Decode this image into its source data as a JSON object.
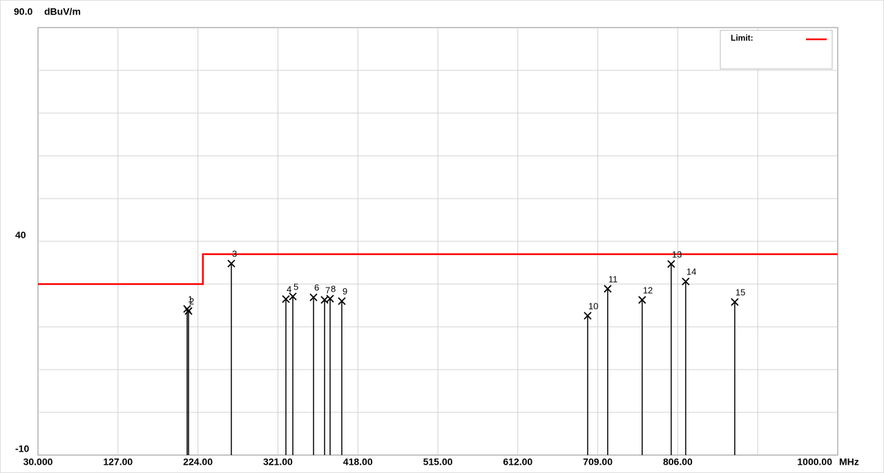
{
  "chart_data": {
    "type": "stem",
    "y_unit": "dBuV/m",
    "x_unit": "MHz",
    "xlim": [
      30,
      1000
    ],
    "ylim": [
      -10,
      90
    ],
    "xticks": [
      {
        "value": 30,
        "label": "30.000"
      },
      {
        "value": 127,
        "label": "127.00"
      },
      {
        "value": 224,
        "label": "224.00"
      },
      {
        "value": 321,
        "label": "321.00"
      },
      {
        "value": 418,
        "label": "418.00"
      },
      {
        "value": 515,
        "label": "515.00"
      },
      {
        "value": 612,
        "label": "612.00"
      },
      {
        "value": 709,
        "label": "709.00"
      },
      {
        "value": 806,
        "label": "806.00"
      },
      {
        "value": 1000,
        "label": "1000.00"
      }
    ],
    "yticks": [
      -10,
      40,
      {
        "value": 90,
        "label": "90.0"
      }
    ],
    "xgrid": [
      127,
      224,
      321,
      418,
      515,
      612,
      709,
      806,
      903
    ],
    "ygrid": [
      0,
      10,
      20,
      30,
      40,
      50,
      60,
      70,
      80
    ],
    "grid": true,
    "legend": "top-right",
    "limit": {
      "name": "Limit:",
      "color": "#ff0000",
      "x": [
        30,
        230,
        230,
        1000
      ],
      "values": [
        30,
        30,
        37,
        37
      ]
    },
    "markers": [
      "1",
      "2",
      "3",
      "4",
      "5",
      "6",
      "7",
      "8",
      "9",
      "10",
      "11",
      "12",
      "13",
      "14",
      "15"
    ],
    "x": [
      210.9,
      212.6,
      264.5,
      330.7,
      339.1,
      364.2,
      377.6,
      384.3,
      398.5,
      696.7,
      721.0,
      762.8,
      798.0,
      815.6,
      875.1
    ],
    "values": [
      24.2,
      23.7,
      34.8,
      26.5,
      27.1,
      26.9,
      26.3,
      26.6,
      26.0,
      22.6,
      28.9,
      26.3,
      34.7,
      30.6,
      25.8
    ],
    "color": "#000000"
  }
}
